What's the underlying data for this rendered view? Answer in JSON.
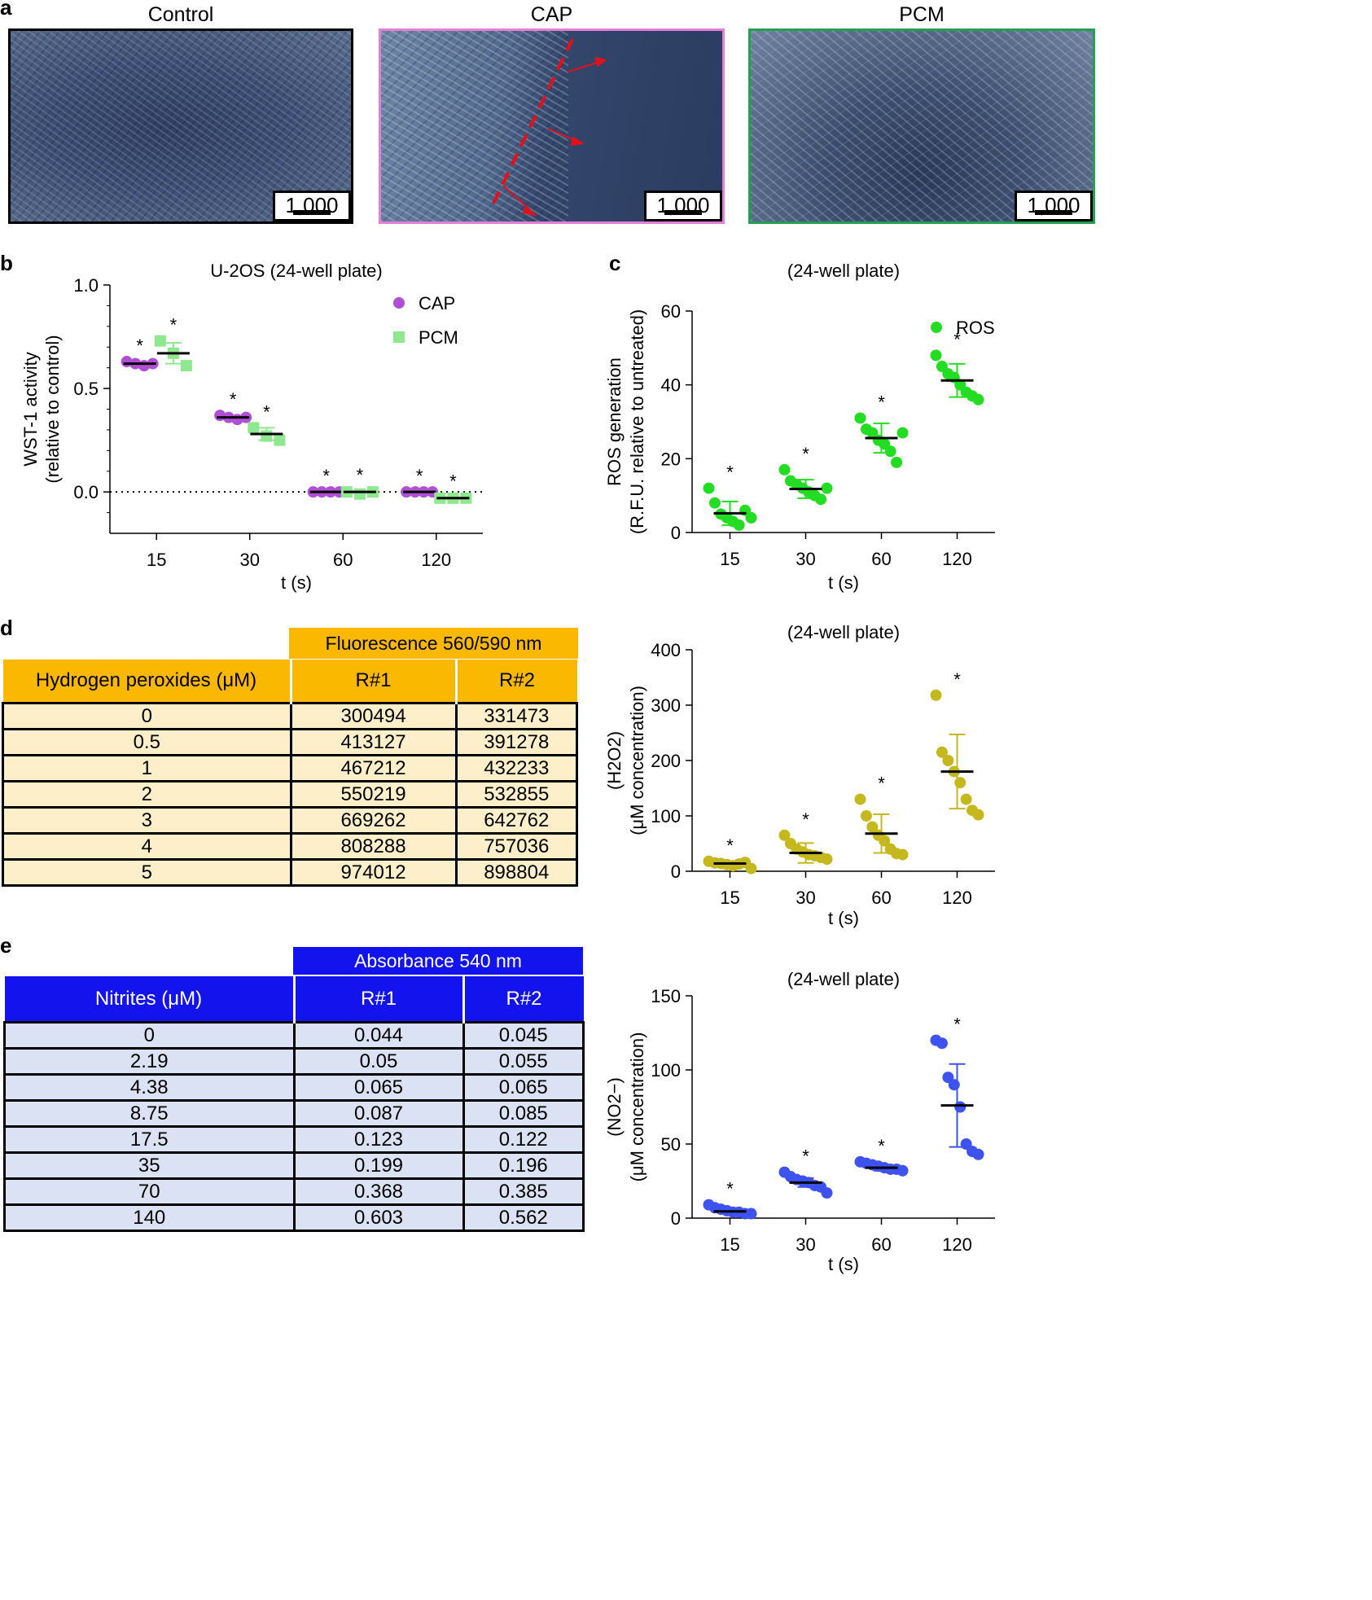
{
  "panel_a": {
    "letter": "a",
    "images": [
      {
        "title": "Control",
        "scale_bar": "1,000 μM",
        "frame_color": "#000000"
      },
      {
        "title": "CAP",
        "scale_bar": "1,000 μM",
        "frame_color": "#e47fd8"
      },
      {
        "title": "PCM",
        "scale_bar": "1,000 μM",
        "frame_color": "#22a050"
      }
    ]
  },
  "panel_b": {
    "letter": "b"
  },
  "panel_c": {
    "letter": "c"
  },
  "panel_d": {
    "letter": "d",
    "table": {
      "group_header": "Fluorescence 560/590 nm",
      "row_header": "Hydrogen peroxides (μM)",
      "col_headers": [
        "R#1",
        "R#2"
      ],
      "header_color": "#fbb800",
      "body_color": "#fdefc9",
      "rows": [
        [
          "0",
          "300494",
          "331473"
        ],
        [
          "0.5",
          "413127",
          "391278"
        ],
        [
          "1",
          "467212",
          "432233"
        ],
        [
          "2",
          "550219",
          "532855"
        ],
        [
          "3",
          "669262",
          "642762"
        ],
        [
          "4",
          "808288",
          "757036"
        ],
        [
          "5",
          "974012",
          "898804"
        ]
      ]
    }
  },
  "panel_e": {
    "letter": "e",
    "table": {
      "group_header": "Absorbance 540 nm",
      "row_header": "Nitrites (μM)",
      "col_headers": [
        "R#1",
        "R#2"
      ],
      "header_color": "#1313ee",
      "body_color": "#dae2f3",
      "rows": [
        [
          "0",
          "0.044",
          "0.045"
        ],
        [
          "2.19",
          "0.05",
          "0.055"
        ],
        [
          "4.38",
          "0.065",
          "0.065"
        ],
        [
          "8.75",
          "0.087",
          "0.085"
        ],
        [
          "17.5",
          "0.123",
          "0.122"
        ],
        [
          "35",
          "0.199",
          "0.196"
        ],
        [
          "70",
          "0.368",
          "0.385"
        ],
        [
          "140",
          "0.603",
          "0.562"
        ]
      ]
    }
  },
  "chart_data": [
    {
      "id": "b",
      "type": "scatter",
      "title": "U-2OS (24-well plate)",
      "xlabel": "t (s)",
      "ylabel": "WST-1 activity",
      "ylabel2": "(relative to control)",
      "categories": [
        "15",
        "30",
        "60",
        "120"
      ],
      "ylim": [
        -0.2,
        1.0
      ],
      "yticks": [
        "1.0",
        "0.5",
        "0.0"
      ],
      "ytick_values": [
        1.0,
        0.5,
        0.0
      ],
      "reference_line": 0.0,
      "legend_position": "top-right",
      "significance": "*",
      "series": [
        {
          "name": "CAP",
          "color": "#b04fd6",
          "marker": "circle",
          "points": [
            [
              0.63,
              0.62,
              0.61,
              0.62
            ],
            [
              0.37,
              0.36,
              0.35,
              0.36
            ],
            [
              0.0,
              0.0,
              0.0,
              0.0
            ],
            [
              0.0,
              0.0,
              0.0,
              0.0
            ]
          ],
          "means": [
            0.62,
            0.36,
            0.0,
            0.0
          ]
        },
        {
          "name": "PCM",
          "color": "#8ee88e",
          "marker": "square",
          "points": [
            [
              0.73,
              0.67,
              0.61
            ],
            [
              0.31,
              0.27,
              0.25
            ],
            [
              0.0,
              -0.01,
              0.0
            ],
            [
              -0.03,
              -0.03,
              -0.03
            ]
          ],
          "means": [
            0.67,
            0.28,
            0.0,
            -0.03
          ],
          "errors": [
            0.05,
            0.03,
            0.005,
            0.005
          ]
        }
      ]
    },
    {
      "id": "c",
      "type": "scatter",
      "title": "(24-well plate)",
      "xlabel": "t (s)",
      "ylabel": "ROS generation",
      "ylabel2": "(R.F.U. relative to untreated)",
      "categories": [
        "15",
        "30",
        "60",
        "120"
      ],
      "ylim": [
        0,
        60
      ],
      "yticks": [
        "60",
        "40",
        "20",
        "0"
      ],
      "ytick_values": [
        60,
        40,
        20,
        0
      ],
      "legend_position": "top-right",
      "significance": "*",
      "series": [
        {
          "name": "ROS",
          "color": "#22dd22",
          "marker": "circle",
          "points": [
            [
              12,
              8,
              5,
              4,
              3,
              2,
              6,
              4
            ],
            [
              17,
              14,
              13,
              12,
              11,
              10,
              9,
              12
            ],
            [
              31,
              28,
              27,
              25,
              24,
              22,
              19,
              27
            ],
            [
              48,
              45,
              43,
              42,
              40,
              38,
              37,
              36
            ]
          ],
          "means": [
            5.2,
            11.8,
            25.6,
            41.2
          ],
          "errors": [
            3.2,
            2.5,
            4.0,
            4.5
          ]
        }
      ]
    },
    {
      "id": "d",
      "type": "scatter",
      "title": "(24-well plate)",
      "xlabel": "t (s)",
      "ylabel": "(H2O2)",
      "ylabel2": "(μM concentration)",
      "categories": [
        "15",
        "30",
        "60",
        "120"
      ],
      "ylim": [
        0,
        400
      ],
      "yticks": [
        "400",
        "300",
        "200",
        "100",
        "0"
      ],
      "ytick_values": [
        400,
        300,
        200,
        100,
        0
      ],
      "significance": "*",
      "series": [
        {
          "name": "H2O2",
          "color": "#c4b81e",
          "marker": "circle",
          "points": [
            [
              18,
              15,
              14,
              12,
              10,
              13,
              16,
              5
            ],
            [
              65,
              50,
              40,
              35,
              30,
              28,
              25,
              22
            ],
            [
              130,
              100,
              80,
              65,
              55,
              40,
              32,
              30
            ],
            [
              318,
              215,
              200,
              180,
              160,
              130,
              110,
              102
            ]
          ],
          "means": [
            14,
            33,
            68,
            180
          ],
          "errors": [
            4,
            18,
            35,
            67
          ]
        }
      ]
    },
    {
      "id": "e",
      "type": "scatter",
      "title": "(24-well plate)",
      "xlabel": "t (s)",
      "ylabel": "(NO2−)",
      "ylabel2": "(μM concentration)",
      "categories": [
        "15",
        "30",
        "60",
        "120"
      ],
      "ylim": [
        0,
        150
      ],
      "yticks": [
        "150",
        "100",
        "50",
        "0"
      ],
      "ytick_values": [
        150,
        100,
        50,
        0
      ],
      "significance": "*",
      "series": [
        {
          "name": "NO2",
          "color": "#3e52f0",
          "marker": "circle",
          "points": [
            [
              9,
              7,
              6,
              5,
              4,
              4,
              3,
              3
            ],
            [
              31,
              28,
              26,
              25,
              24,
              22,
              21,
              17
            ],
            [
              38,
              37,
              36,
              35,
              34,
              33,
              33,
              32
            ],
            [
              120,
              118,
              95,
              90,
              75,
              50,
              45,
              43
            ]
          ],
          "means": [
            4.5,
            24,
            34,
            76
          ],
          "errors": [
            1.5,
            3,
            2,
            28
          ]
        }
      ]
    }
  ]
}
